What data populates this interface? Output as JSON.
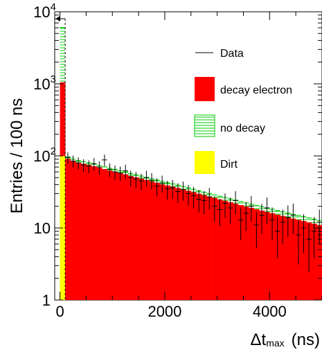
{
  "chart_data": {
    "type": "histogram",
    "title": "",
    "xlabel": {
      "main": "Δt",
      "sub": "max",
      "unit": "(ns)"
    },
    "ylabel": "Entries / 100 ns",
    "xlim": [
      -100,
      5000
    ],
    "ylim": [
      1,
      10000
    ],
    "yscale": "log",
    "bin_width": 100,
    "x_ticks": [
      0,
      2000,
      4000
    ],
    "x_tick_labels": [
      "0",
      "2000",
      "4000"
    ],
    "y_ticks": [
      {
        "value": 1,
        "base": "1",
        "exp": ""
      },
      {
        "value": 10,
        "base": "10",
        "exp": ""
      },
      {
        "value": 100,
        "base": "10",
        "exp": "2"
      },
      {
        "value": 1000,
        "base": "10",
        "exp": "3"
      },
      {
        "value": 10000,
        "base": "10",
        "exp": "4"
      }
    ],
    "cut_line_x": 100,
    "grid": false,
    "legend_position": "top-right",
    "legend": [
      {
        "label": "Data",
        "style": "line",
        "color": "#000000"
      },
      {
        "label": "decay electron",
        "style": "fill",
        "color": "#ff0000"
      },
      {
        "label": "no decay",
        "style": "hatch",
        "color": "#00cc00"
      },
      {
        "label": "Dirt",
        "style": "fill",
        "color": "#ffff00"
      }
    ],
    "colors": {
      "decay_electron": "#ff0000",
      "no_decay": "#00cc00",
      "dirt": "#ffff00",
      "data": "#000000"
    },
    "bins_low_edge": [
      0,
      100,
      200,
      300,
      400,
      500,
      600,
      700,
      800,
      900,
      1000,
      1100,
      1200,
      1300,
      1400,
      1500,
      1600,
      1700,
      1800,
      1900,
      2000,
      2100,
      2200,
      2300,
      2400,
      2500,
      2600,
      2700,
      2800,
      2900,
      3000,
      3100,
      3200,
      3300,
      3400,
      3500,
      3600,
      3700,
      3800,
      3900,
      4000,
      4100,
      4200,
      4300,
      4400,
      4500,
      4600,
      4700,
      4800,
      4900
    ],
    "decay_electron": [
      950,
      90,
      84,
      80,
      77,
      74,
      71,
      68,
      65,
      62,
      60,
      57,
      55,
      52,
      50,
      48,
      46,
      44,
      42,
      40,
      38.5,
      37,
      35.5,
      34,
      32.5,
      31,
      29.5,
      28.2,
      27,
      25.8,
      24.6,
      23.5,
      22.5,
      21.5,
      20.5,
      19.6,
      18.8,
      18,
      17.2,
      16.5,
      15.8,
      15.1,
      14.5,
      13.9,
      13.3,
      12.8,
      12.3,
      11.8,
      11.3,
      10.8
    ],
    "no_decay": [
      5000,
      6,
      5.5,
      5.3,
      5.1,
      5,
      4.9,
      4.8,
      4.7,
      4.6,
      4.5,
      4.4,
      4.3,
      4.2,
      4.1,
      4,
      3.9,
      3.8,
      3.7,
      3.6,
      3.5,
      3.4,
      3.3,
      3.2,
      3.1,
      3,
      2.9,
      2.8,
      2.75,
      2.7,
      2.65,
      2.6,
      2.55,
      2.5,
      2.45,
      2.4,
      2.35,
      2.3,
      2.25,
      2.2,
      2.15,
      2.1,
      2.05,
      2,
      1.95,
      1.9,
      1.85,
      1.8,
      1.75,
      1.7
    ],
    "dirt": [
      100,
      1,
      0.9,
      0.85,
      0.8,
      0.8,
      0.75,
      0.7,
      0.7,
      0.65,
      0.6,
      0.6,
      0.55,
      0.55,
      0.5,
      0.5,
      0.5,
      0.45,
      0.45,
      0.4,
      0.4,
      0.4,
      0.38,
      0.36,
      0.35,
      0.34,
      0.33,
      0.32,
      0.31,
      0.3,
      0.3,
      0.29,
      0.28,
      0.27,
      0.26,
      0.25,
      0.25,
      0.24,
      0.23,
      0.22,
      0.22,
      0.21,
      0.2,
      0.2,
      0.19,
      0.19,
      0.18,
      0.18,
      0.17,
      0.17
    ],
    "data_x": [
      150,
      250,
      350,
      450,
      550,
      650,
      750,
      850,
      950,
      1050,
      1150,
      1250,
      1350,
      1450,
      1550,
      1650,
      1750,
      1850,
      1950,
      2050,
      2150,
      2250,
      2350,
      2450,
      2550,
      2650,
      2750,
      2850,
      2950,
      3050,
      3150,
      3250,
      3350,
      3450,
      3550,
      3650,
      3750,
      3850,
      3950,
      4050,
      4150,
      4250,
      4350,
      4450,
      4550,
      4650,
      4750,
      4850,
      4950
    ],
    "data_y": [
      95,
      85,
      80,
      75,
      72,
      78,
      70,
      88,
      65,
      60,
      58,
      62,
      50,
      48,
      45,
      50,
      46,
      38,
      42,
      35,
      36,
      32,
      34,
      30,
      28,
      25,
      24,
      27,
      20,
      18,
      22,
      19,
      24,
      13,
      16,
      20,
      11,
      15,
      19,
      13,
      9,
      12,
      14,
      15,
      8,
      10,
      7,
      9,
      12
    ],
    "data_xerr": 50
  }
}
